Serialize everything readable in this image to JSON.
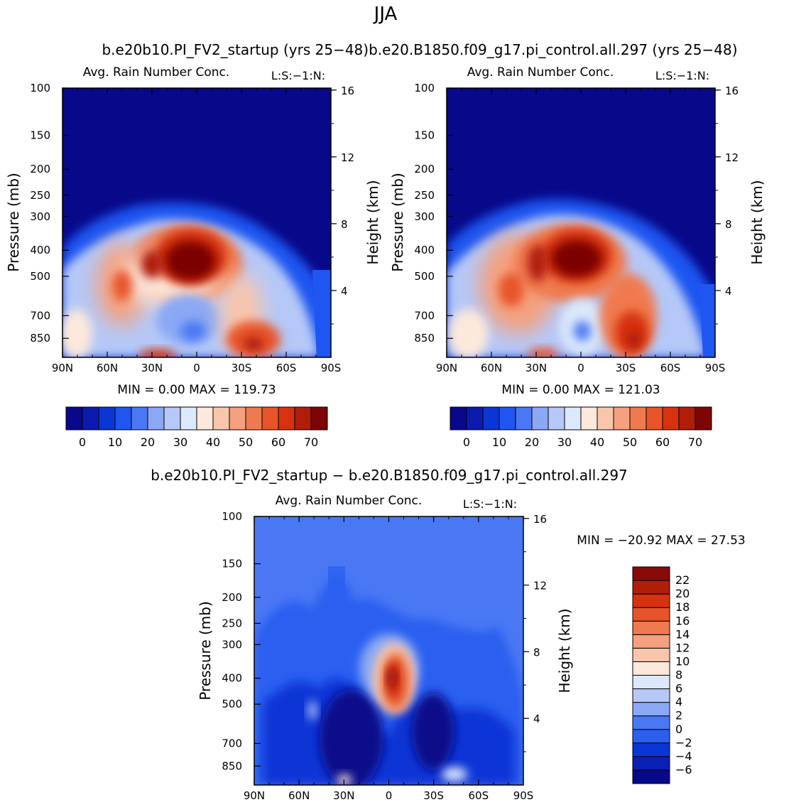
{
  "figure": {
    "season": "JJA",
    "top_title": "b.e20b10.PI_FV2_startup (yrs 25−48)b.e20.B1850.f09_g17.pi_control.all.297 (yrs 25−48)",
    "bottom_title": "b.e20b10.PI_FV2_startup − b.e20.B1850.f09_g17.pi_control.all.297"
  },
  "colors": {
    "abs_scale": [
      "#08088a",
      "#0b1bb0",
      "#0a36d6",
      "#1f55f0",
      "#4a78f5",
      "#8aa8f5",
      "#b5c8f8",
      "#dce8fb",
      "#fde8dc",
      "#f9c6ac",
      "#f5a07e",
      "#f07a50",
      "#e8542a",
      "#d6320e",
      "#b01e0a",
      "#7d0505"
    ],
    "diff_scale": [
      "#08088a",
      "#0a1fb5",
      "#0a36d6",
      "#2a5ff0",
      "#4a78f5",
      "#8aa8f5",
      "#b5c8f8",
      "#dce8fb",
      "#fde8dc",
      "#f9c6ac",
      "#f5a07e",
      "#f07a50",
      "#e8542a",
      "#d6320e",
      "#b01e0a",
      "#8a0a0a"
    ]
  },
  "chart_data": [
    {
      "type": "heatmap",
      "panel": "top-left",
      "title": "Avg. Rain Number Conc.",
      "corner_label": "L:S:−1:N:",
      "xlabel": "",
      "ylabel": "Pressure (mb)",
      "y2label": "Height (km)",
      "x_ticks": [
        "90N",
        "60N",
        "30N",
        "0",
        "30S",
        "60S",
        "90S"
      ],
      "y_ticks": [
        100,
        150,
        200,
        250,
        300,
        400,
        500,
        700,
        850
      ],
      "y2_ticks": [
        16,
        12,
        8,
        4
      ],
      "ylim": [
        100,
        1000
      ],
      "stats": "MIN =    0.00   MAX =  119.73",
      "min": 0.0,
      "max": 119.73,
      "colorbar_labels": [
        "0",
        "10",
        "20",
        "30",
        "40",
        "50",
        "60",
        "70"
      ],
      "features": [
        {
          "lat": 5,
          "p": 430,
          "value": 80
        },
        {
          "lat": 28,
          "p": 420,
          "value": 60
        },
        {
          "lat": 50,
          "p": 510,
          "value": 58
        },
        {
          "lat": -35,
          "p": 850,
          "value": 60
        },
        {
          "lat": 3,
          "p": 680,
          "value": 15
        }
      ]
    },
    {
      "type": "heatmap",
      "panel": "top-right",
      "title": "Avg. Rain Number Conc.",
      "corner_label": "L:S:−1:N:",
      "xlabel": "",
      "ylabel": "Pressure (mb)",
      "y2label": "Height (km)",
      "x_ticks": [
        "90N",
        "60N",
        "30N",
        "0",
        "30S",
        "60S",
        "90S"
      ],
      "y_ticks": [
        100,
        150,
        200,
        250,
        300,
        400,
        500,
        700,
        850
      ],
      "y2_ticks": [
        16,
        12,
        8,
        4
      ],
      "ylim": [
        100,
        1000
      ],
      "stats": "MIN =    0.00   MAX =  121.03",
      "min": 0.0,
      "max": 121.03,
      "colorbar_labels": [
        "0",
        "10",
        "20",
        "30",
        "40",
        "50",
        "60",
        "70"
      ],
      "features": [
        {
          "lat": 12,
          "p": 420,
          "value": 80
        },
        {
          "lat": 28,
          "p": 400,
          "value": 65
        },
        {
          "lat": 50,
          "p": 520,
          "value": 55
        },
        {
          "lat": -35,
          "p": 800,
          "value": 65
        },
        {
          "lat": 0,
          "p": 700,
          "value": 22
        }
      ]
    },
    {
      "type": "heatmap",
      "panel": "bottom-difference",
      "title": "Avg. Rain Number Conc.",
      "corner_label": "L:S:−1:N:",
      "xlabel": "",
      "ylabel": "Pressure (mb)",
      "y2label": "Height (km)",
      "x_ticks": [
        "90N",
        "60N",
        "30N",
        "0",
        "30S",
        "60S",
        "90S"
      ],
      "y_ticks": [
        100,
        150,
        200,
        250,
        300,
        400,
        500,
        700,
        850
      ],
      "y2_ticks": [
        16,
        12,
        8,
        4
      ],
      "ylim": [
        100,
        1000
      ],
      "stats": "MIN = −20.92   MAX =   27.53",
      "min": -20.92,
      "max": 27.53,
      "colorbar_labels": [
        "22",
        "20",
        "18",
        "16",
        "14",
        "12",
        "10",
        "8",
        "6",
        "4",
        "2",
        "0",
        "−2",
        "−4",
        "−6"
      ],
      "features": [
        {
          "lat": -5,
          "p": 420,
          "value": 24
        },
        {
          "lat": 25,
          "p": 700,
          "value": -8
        },
        {
          "lat": -45,
          "p": 700,
          "value": -8
        },
        {
          "lat": 10,
          "p": 250,
          "value": 6
        }
      ]
    }
  ]
}
